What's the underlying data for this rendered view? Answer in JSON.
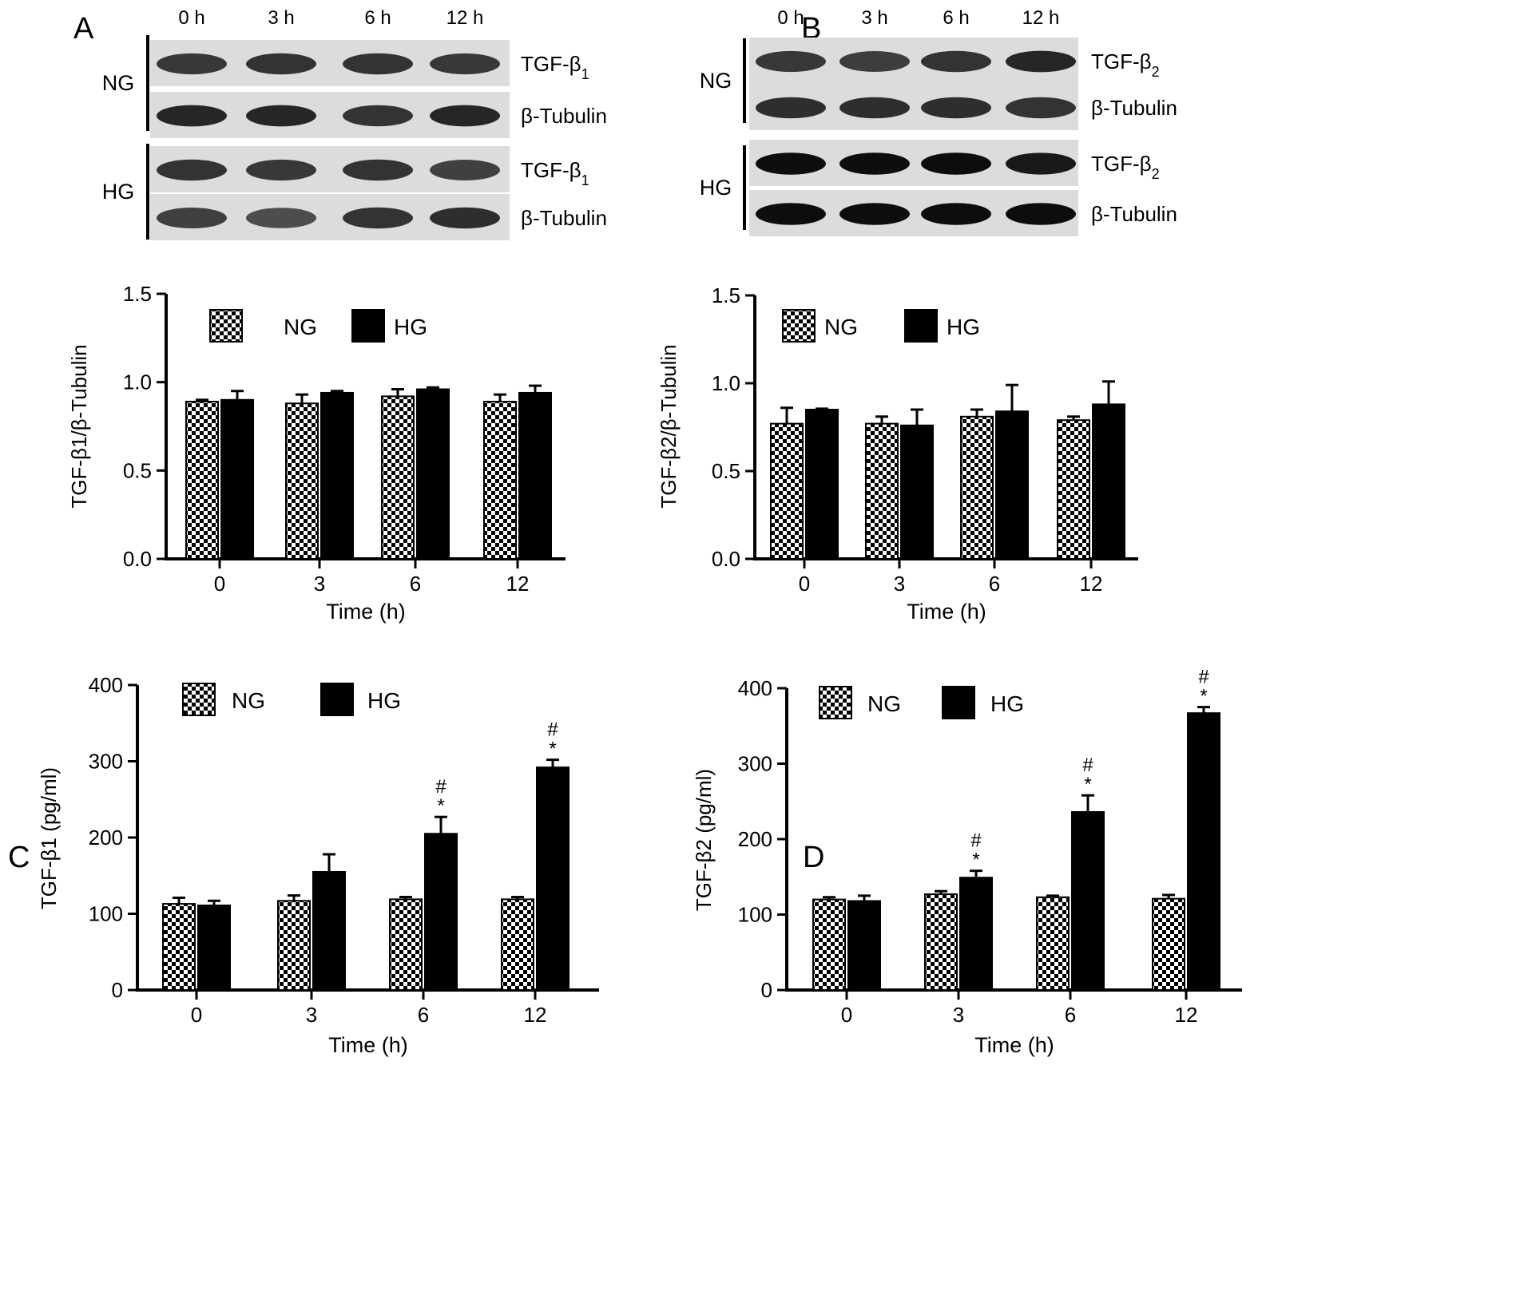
{
  "panel_letters": {
    "a": "A",
    "b": "B",
    "c": "C",
    "d": "D"
  },
  "blots": {
    "a": {
      "time_labels": [
        "0 h",
        "3 h",
        "6 h",
        "12 h"
      ],
      "groups": [
        {
          "label": "NG",
          "rows": [
            {
              "protein": "TGF-β",
              "sub": "1",
              "intensities": [
                0.78,
                0.8,
                0.8,
                0.78
              ]
            },
            {
              "protein": "β-Tubulin",
              "sub": "",
              "intensities": [
                0.85,
                0.85,
                0.8,
                0.85
              ]
            }
          ]
        },
        {
          "label": "HG",
          "rows": [
            {
              "protein": "TGF-β",
              "sub": "1",
              "intensities": [
                0.8,
                0.78,
                0.8,
                0.75
              ]
            },
            {
              "protein": "β-Tubulin",
              "sub": "",
              "intensities": [
                0.75,
                0.7,
                0.8,
                0.82
              ]
            }
          ]
        }
      ]
    },
    "b": {
      "time_labels": [
        "0 h",
        "3 h",
        "6 h",
        "12 h"
      ],
      "groups": [
        {
          "label": "NG",
          "rows": [
            {
              "protein": "TGF-β",
              "sub": "2",
              "intensities": [
                0.78,
                0.76,
                0.8,
                0.85
              ]
            },
            {
              "protein": "β-Tubulin",
              "sub": "",
              "intensities": [
                0.82,
                0.82,
                0.82,
                0.8
              ]
            }
          ]
        },
        {
          "label": "HG",
          "rows": [
            {
              "protein": "TGF-β",
              "sub": "2",
              "intensities": [
                0.95,
                0.95,
                0.95,
                0.9
              ]
            },
            {
              "protein": "β-Tubulin",
              "sub": "",
              "intensities": [
                0.95,
                0.95,
                0.95,
                0.95
              ]
            }
          ]
        }
      ]
    }
  },
  "legend": {
    "ng": "NG",
    "hg": "HG"
  },
  "colors": {
    "hg": "#000000",
    "ng_pattern": "checker",
    "axis": "#000000"
  },
  "chart_data": [
    {
      "panel": "A",
      "type": "bar",
      "categories": [
        "0",
        "3",
        "6",
        "12"
      ],
      "xlabel": "Time (h)",
      "ylabel": "TGF-β1/β-Tubulin",
      "ylim": [
        0,
        1.5
      ],
      "yticks": [
        "0.0",
        "0.5",
        "1.0",
        "1.5"
      ],
      "legend_position": "top-left",
      "series": [
        {
          "name": "NG",
          "values": [
            0.89,
            0.88,
            0.92,
            0.89
          ],
          "errors": [
            0.01,
            0.05,
            0.04,
            0.04
          ]
        },
        {
          "name": "HG",
          "values": [
            0.9,
            0.94,
            0.96,
            0.94
          ],
          "errors": [
            0.05,
            0.01,
            0.01,
            0.04
          ]
        }
      ],
      "annotations": [
        [],
        [],
        [],
        []
      ]
    },
    {
      "panel": "B",
      "type": "bar",
      "categories": [
        "0",
        "3",
        "6",
        "12"
      ],
      "xlabel": "Time (h)",
      "ylabel": "TGF-β2/β-Tubulin",
      "ylim": [
        0,
        1.5
      ],
      "yticks": [
        "0.0",
        "0.5",
        "1.0",
        "1.5"
      ],
      "legend_position": "top-left",
      "series": [
        {
          "name": "NG",
          "values": [
            0.77,
            0.77,
            0.81,
            0.79
          ],
          "errors": [
            0.09,
            0.04,
            0.04,
            0.02
          ]
        },
        {
          "name": "HG",
          "values": [
            0.85,
            0.76,
            0.84,
            0.88
          ],
          "errors": [
            0.005,
            0.09,
            0.15,
            0.13
          ]
        }
      ],
      "annotations": [
        [],
        [],
        [],
        []
      ]
    },
    {
      "panel": "C",
      "type": "bar",
      "categories": [
        "0",
        "3",
        "6",
        "12"
      ],
      "xlabel": "Time (h)",
      "ylabel": "TGF-β1 (pg/ml)",
      "ylim": [
        0,
        400
      ],
      "yticks": [
        "0",
        "100",
        "200",
        "300",
        "400"
      ],
      "legend_position": "top-left",
      "series": [
        {
          "name": "NG",
          "values": [
            113,
            117,
            119,
            119
          ],
          "errors": [
            8,
            7,
            3,
            3
          ]
        },
        {
          "name": "HG",
          "values": [
            111,
            155,
            205,
            292
          ],
          "errors": [
            6,
            23,
            22,
            10
          ]
        }
      ],
      "annotations": [
        [],
        [],
        [
          "#",
          "*"
        ],
        [
          "#",
          "*"
        ]
      ]
    },
    {
      "panel": "D",
      "type": "bar",
      "categories": [
        "0",
        "3",
        "6",
        "12"
      ],
      "xlabel": "Time (h)",
      "ylabel": "TGF-β2 (pg/ml)",
      "ylim": [
        0,
        400
      ],
      "yticks": [
        "0",
        "100",
        "200",
        "300",
        "400"
      ],
      "legend_position": "top-left",
      "series": [
        {
          "name": "NG",
          "values": [
            120,
            127,
            123,
            121
          ],
          "errors": [
            3,
            4,
            2,
            5
          ]
        },
        {
          "name": "HG",
          "values": [
            118,
            149,
            236,
            367
          ],
          "errors": [
            7,
            9,
            22,
            8
          ]
        }
      ],
      "annotations": [
        [],
        [
          "#",
          "*"
        ],
        [
          "#",
          "*"
        ],
        [
          "#",
          "*"
        ]
      ]
    }
  ]
}
